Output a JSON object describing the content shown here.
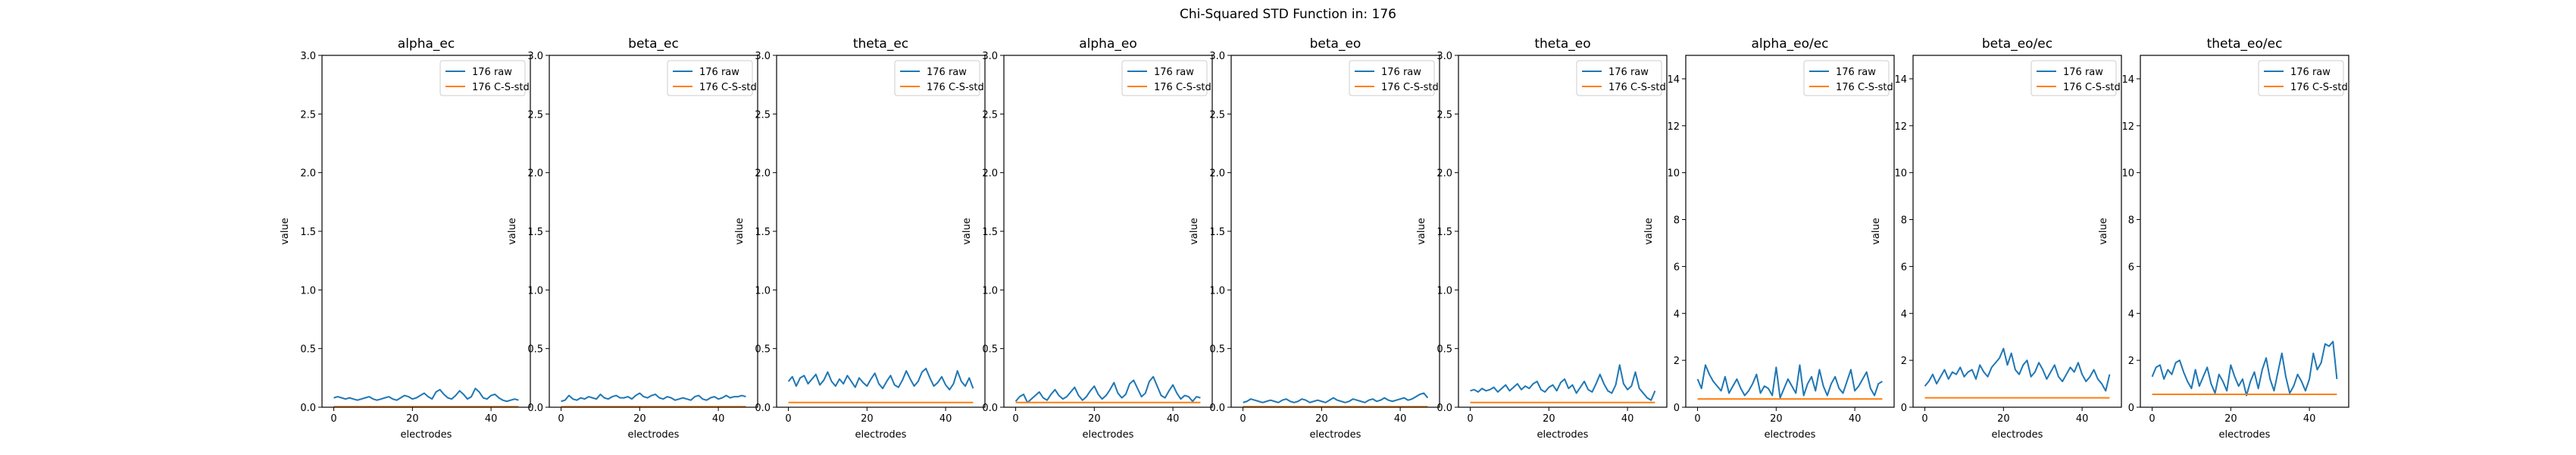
{
  "figure": {
    "suptitle": "Chi-Squared STD Function in: 176"
  },
  "chart_data": [
    {
      "type": "line",
      "title": "alpha_ec",
      "xlabel": "electrodes",
      "ylabel": "value",
      "xlim": [
        -3,
        50
      ],
      "ylim": [
        0,
        3
      ],
      "xticks": [
        0,
        20,
        40
      ],
      "yticks": [
        0.0,
        0.5,
        1.0,
        1.5,
        2.0,
        2.5,
        3.0
      ],
      "ytick_labels": [
        "0.0",
        "0.5",
        "1.0",
        "1.5",
        "2.0",
        "2.5",
        "3.0"
      ],
      "legend_position": "upper right",
      "x_start": 0,
      "series": [
        {
          "name": "176 raw",
          "color": "#1f77b4",
          "values": [
            0.08,
            0.09,
            0.08,
            0.07,
            0.08,
            0.07,
            0.06,
            0.07,
            0.08,
            0.09,
            0.07,
            0.06,
            0.07,
            0.08,
            0.09,
            0.07,
            0.06,
            0.08,
            0.1,
            0.09,
            0.07,
            0.08,
            0.1,
            0.12,
            0.09,
            0.07,
            0.13,
            0.15,
            0.11,
            0.08,
            0.07,
            0.1,
            0.14,
            0.11,
            0.07,
            0.09,
            0.16,
            0.13,
            0.08,
            0.07,
            0.1,
            0.11,
            0.08,
            0.06,
            0.05,
            0.06,
            0.07,
            0.06
          ]
        },
        {
          "name": "176 C-S-std",
          "color": "#ff7f0e",
          "constant": 0.005
        }
      ]
    },
    {
      "type": "line",
      "title": "beta_ec",
      "xlabel": "electrodes",
      "ylabel": "value",
      "xlim": [
        -3,
        50
      ],
      "ylim": [
        0,
        3
      ],
      "xticks": [
        0,
        20,
        40
      ],
      "yticks": [
        0.0,
        0.5,
        1.0,
        1.5,
        2.0,
        2.5,
        3.0
      ],
      "ytick_labels": [
        "0.0",
        "0.5",
        "1.0",
        "1.5",
        "2.0",
        "2.5",
        "3.0"
      ],
      "legend_position": "upper right",
      "x_start": 0,
      "series": [
        {
          "name": "176 raw",
          "color": "#1f77b4",
          "values": [
            0.05,
            0.06,
            0.1,
            0.07,
            0.06,
            0.08,
            0.07,
            0.09,
            0.08,
            0.07,
            0.11,
            0.08,
            0.07,
            0.09,
            0.1,
            0.08,
            0.08,
            0.09,
            0.07,
            0.1,
            0.12,
            0.09,
            0.08,
            0.1,
            0.11,
            0.08,
            0.07,
            0.09,
            0.08,
            0.06,
            0.07,
            0.08,
            0.07,
            0.06,
            0.09,
            0.1,
            0.07,
            0.06,
            0.08,
            0.09,
            0.07,
            0.08,
            0.1,
            0.08,
            0.09,
            0.09,
            0.1,
            0.09
          ]
        },
        {
          "name": "176 C-S-std",
          "color": "#ff7f0e",
          "constant": 0.005
        }
      ]
    },
    {
      "type": "line",
      "title": "theta_ec",
      "xlabel": "electrodes",
      "ylabel": "value",
      "xlim": [
        -3,
        50
      ],
      "ylim": [
        0,
        3
      ],
      "xticks": [
        0,
        20,
        40
      ],
      "yticks": [
        0.0,
        0.5,
        1.0,
        1.5,
        2.0,
        2.5,
        3.0
      ],
      "ytick_labels": [
        "0.0",
        "0.5",
        "1.0",
        "1.5",
        "2.0",
        "2.5",
        "3.0"
      ],
      "legend_position": "upper right",
      "x_start": 0,
      "series": [
        {
          "name": "176 raw",
          "color": "#1f77b4",
          "values": [
            0.22,
            0.26,
            0.18,
            0.25,
            0.27,
            0.2,
            0.24,
            0.28,
            0.19,
            0.23,
            0.3,
            0.22,
            0.18,
            0.24,
            0.2,
            0.27,
            0.22,
            0.17,
            0.25,
            0.21,
            0.18,
            0.24,
            0.29,
            0.2,
            0.16,
            0.22,
            0.27,
            0.19,
            0.17,
            0.23,
            0.31,
            0.24,
            0.18,
            0.22,
            0.3,
            0.33,
            0.25,
            0.18,
            0.21,
            0.26,
            0.19,
            0.15,
            0.2,
            0.31,
            0.22,
            0.18,
            0.25,
            0.16
          ]
        },
        {
          "name": "176 C-S-std",
          "color": "#ff7f0e",
          "constant": 0.04
        }
      ]
    },
    {
      "type": "line",
      "title": "alpha_eo",
      "xlabel": "electrodes",
      "ylabel": "value",
      "xlim": [
        -3,
        50
      ],
      "ylim": [
        0,
        3
      ],
      "xticks": [
        0,
        20,
        40
      ],
      "yticks": [
        0.0,
        0.5,
        1.0,
        1.5,
        2.0,
        2.5,
        3.0
      ],
      "ytick_labels": [
        "0.0",
        "0.5",
        "1.0",
        "1.5",
        "2.0",
        "2.5",
        "3.0"
      ],
      "legend_position": "upper right",
      "x_start": 0,
      "series": [
        {
          "name": "176 raw",
          "color": "#1f77b4",
          "values": [
            0.05,
            0.09,
            0.11,
            0.04,
            0.07,
            0.1,
            0.13,
            0.08,
            0.06,
            0.11,
            0.15,
            0.1,
            0.07,
            0.09,
            0.13,
            0.17,
            0.1,
            0.06,
            0.09,
            0.14,
            0.18,
            0.11,
            0.07,
            0.1,
            0.15,
            0.21,
            0.12,
            0.08,
            0.11,
            0.2,
            0.23,
            0.16,
            0.09,
            0.12,
            0.22,
            0.26,
            0.18,
            0.1,
            0.08,
            0.14,
            0.19,
            0.12,
            0.07,
            0.1,
            0.09,
            0.05,
            0.09,
            0.08
          ]
        },
        {
          "name": "176 C-S-std",
          "color": "#ff7f0e",
          "constant": 0.04
        }
      ]
    },
    {
      "type": "line",
      "title": "beta_eo",
      "xlabel": "electrodes",
      "ylabel": "value",
      "xlim": [
        -3,
        50
      ],
      "ylim": [
        0,
        3
      ],
      "xticks": [
        0,
        20,
        40
      ],
      "yticks": [
        0.0,
        0.5,
        1.0,
        1.5,
        2.0,
        2.5,
        3.0
      ],
      "ytick_labels": [
        "0.0",
        "0.5",
        "1.0",
        "1.5",
        "2.0",
        "2.5",
        "3.0"
      ],
      "legend_position": "upper right",
      "x_start": 0,
      "series": [
        {
          "name": "176 raw",
          "color": "#1f77b4",
          "values": [
            0.04,
            0.05,
            0.07,
            0.06,
            0.05,
            0.04,
            0.05,
            0.06,
            0.05,
            0.04,
            0.06,
            0.07,
            0.05,
            0.04,
            0.05,
            0.07,
            0.06,
            0.04,
            0.05,
            0.06,
            0.05,
            0.04,
            0.06,
            0.08,
            0.06,
            0.05,
            0.04,
            0.05,
            0.07,
            0.06,
            0.05,
            0.04,
            0.06,
            0.07,
            0.05,
            0.06,
            0.08,
            0.06,
            0.05,
            0.06,
            0.07,
            0.08,
            0.06,
            0.07,
            0.09,
            0.11,
            0.12,
            0.08
          ]
        },
        {
          "name": "176 C-S-std",
          "color": "#ff7f0e",
          "constant": 0.005
        }
      ]
    },
    {
      "type": "line",
      "title": "theta_eo",
      "xlabel": "electrodes",
      "ylabel": "value",
      "xlim": [
        -3,
        50
      ],
      "ylim": [
        0,
        3
      ],
      "xticks": [
        0,
        20,
        40
      ],
      "yticks": [
        0.0,
        0.5,
        1.0,
        1.5,
        2.0,
        2.5,
        3.0
      ],
      "ytick_labels": [
        "0.0",
        "0.5",
        "1.0",
        "1.5",
        "2.0",
        "2.5",
        "3.0"
      ],
      "legend_position": "upper right",
      "x_start": 0,
      "series": [
        {
          "name": "176 raw",
          "color": "#1f77b4",
          "values": [
            0.14,
            0.15,
            0.13,
            0.16,
            0.14,
            0.15,
            0.17,
            0.13,
            0.16,
            0.19,
            0.14,
            0.17,
            0.2,
            0.15,
            0.18,
            0.16,
            0.2,
            0.22,
            0.15,
            0.13,
            0.17,
            0.19,
            0.14,
            0.21,
            0.24,
            0.16,
            0.19,
            0.12,
            0.17,
            0.22,
            0.15,
            0.13,
            0.2,
            0.28,
            0.2,
            0.14,
            0.12,
            0.19,
            0.36,
            0.2,
            0.15,
            0.18,
            0.3,
            0.16,
            0.12,
            0.08,
            0.06,
            0.14
          ]
        },
        {
          "name": "176 C-S-std",
          "color": "#ff7f0e",
          "constant": 0.04
        }
      ]
    },
    {
      "type": "line",
      "title": "alpha_eo/ec",
      "xlabel": "electrodes",
      "ylabel": "value",
      "xlim": [
        -3,
        50
      ],
      "ylim": [
        0,
        15
      ],
      "xticks": [
        0,
        20,
        40
      ],
      "yticks": [
        0,
        2,
        4,
        6,
        8,
        10,
        12,
        14
      ],
      "ytick_labels": [
        "0",
        "2",
        "4",
        "6",
        "8",
        "10",
        "12",
        "14"
      ],
      "legend_position": "upper right",
      "x_start": 0,
      "series": [
        {
          "name": "176 raw",
          "color": "#1f77b4",
          "values": [
            1.2,
            0.8,
            1.8,
            1.4,
            1.1,
            0.9,
            0.7,
            1.3,
            0.6,
            0.9,
            1.2,
            0.8,
            0.5,
            0.7,
            1.0,
            1.4,
            0.6,
            0.9,
            0.8,
            0.5,
            1.7,
            0.4,
            0.8,
            1.2,
            0.9,
            0.6,
            1.8,
            0.5,
            1.0,
            1.3,
            0.7,
            1.6,
            0.9,
            0.5,
            1.0,
            1.3,
            0.8,
            0.6,
            1.1,
            1.6,
            0.7,
            0.9,
            1.2,
            1.5,
            0.8,
            0.5,
            1.0,
            1.1
          ]
        },
        {
          "name": "176 C-S-std",
          "color": "#ff7f0e",
          "constant": 0.35
        }
      ]
    },
    {
      "type": "line",
      "title": "beta_eo/ec",
      "xlabel": "electrodes",
      "ylabel": "value",
      "xlim": [
        -3,
        50
      ],
      "ylim": [
        0,
        15
      ],
      "xticks": [
        0,
        20,
        40
      ],
      "yticks": [
        0,
        2,
        4,
        6,
        8,
        10,
        12,
        14
      ],
      "ytick_labels": [
        "0",
        "2",
        "4",
        "6",
        "8",
        "10",
        "12",
        "14"
      ],
      "legend_position": "upper right",
      "x_start": 0,
      "series": [
        {
          "name": "176 raw",
          "color": "#1f77b4",
          "values": [
            0.9,
            1.1,
            1.4,
            1.0,
            1.3,
            1.6,
            1.2,
            1.5,
            1.4,
            1.7,
            1.3,
            1.5,
            1.6,
            1.2,
            1.8,
            1.5,
            1.3,
            1.7,
            1.9,
            2.1,
            2.5,
            1.8,
            2.3,
            1.6,
            1.4,
            1.8,
            2.0,
            1.3,
            1.5,
            1.9,
            1.6,
            1.2,
            1.5,
            1.8,
            1.3,
            1.1,
            1.4,
            1.7,
            1.5,
            1.9,
            1.4,
            1.1,
            1.3,
            1.6,
            1.2,
            1.0,
            0.7,
            1.4
          ]
        },
        {
          "name": "176 C-S-std",
          "color": "#ff7f0e",
          "constant": 0.4
        }
      ]
    },
    {
      "type": "line",
      "title": "theta_eo/ec",
      "xlabel": "electrodes",
      "ylabel": "value",
      "xlim": [
        -3,
        50
      ],
      "ylim": [
        0,
        15
      ],
      "xticks": [
        0,
        20,
        40
      ],
      "yticks": [
        0,
        2,
        4,
        6,
        8,
        10,
        12,
        14
      ],
      "ytick_labels": [
        "0",
        "2",
        "4",
        "6",
        "8",
        "10",
        "12",
        "14"
      ],
      "legend_position": "upper right",
      "x_start": 0,
      "series": [
        {
          "name": "176 raw",
          "color": "#1f77b4",
          "values": [
            1.3,
            1.7,
            1.8,
            1.2,
            1.6,
            1.4,
            1.9,
            2.0,
            1.5,
            1.1,
            0.8,
            1.6,
            0.9,
            1.3,
            1.7,
            1.0,
            0.6,
            1.4,
            1.1,
            0.7,
            1.8,
            1.3,
            0.9,
            1.2,
            0.5,
            1.1,
            1.5,
            0.8,
            1.6,
            2.1,
            1.2,
            0.7,
            1.5,
            2.3,
            1.3,
            0.6,
            0.9,
            1.4,
            1.1,
            0.7,
            1.2,
            2.3,
            1.6,
            1.9,
            2.7,
            2.6,
            2.8,
            1.2
          ]
        },
        {
          "name": "176 C-S-std",
          "color": "#ff7f0e",
          "constant": 0.55
        }
      ]
    }
  ]
}
